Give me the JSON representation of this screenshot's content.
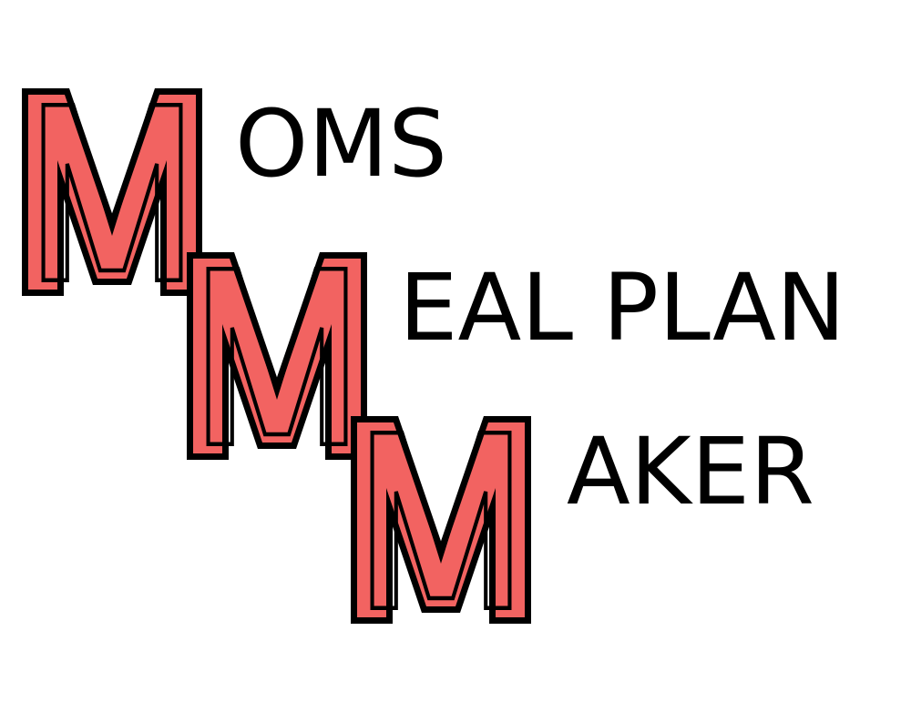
{
  "logo": {
    "lines": [
      {
        "initial": "M",
        "rest": "OMS"
      },
      {
        "initial": "M",
        "rest": "EAL PLAN"
      },
      {
        "initial": "M",
        "rest": "AKER"
      }
    ],
    "colors": {
      "initial_fill": "#f26361",
      "initial_outline": "#000000",
      "text": "#000000",
      "background": "#ffffff"
    }
  }
}
